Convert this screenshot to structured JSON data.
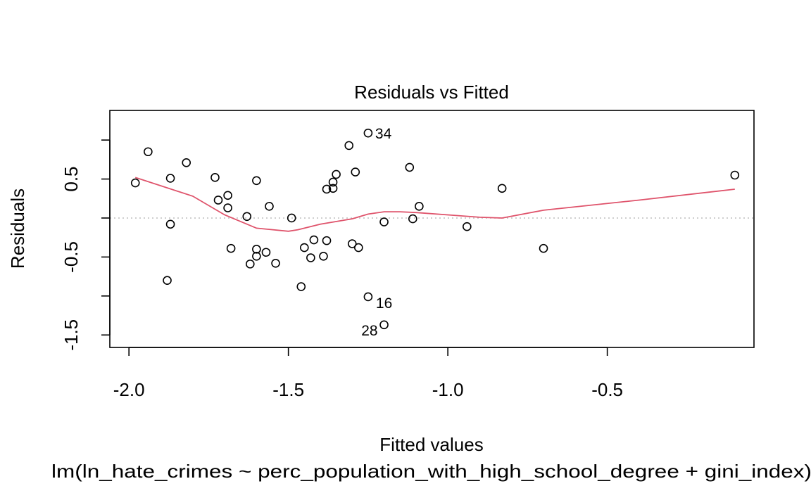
{
  "chart_data": {
    "type": "scatter",
    "title": "Residuals vs Fitted",
    "xlabel": "Fitted values",
    "ylabel": "Residuals",
    "subtitle": "lm(ln_hate_crimes ~ perc_population_with_high_school_degree + gini_index)",
    "xlim": [
      -2.06,
      -0.04
    ],
    "ylim": [
      -1.66,
      1.38
    ],
    "x_ticks": [
      -2.0,
      -1.5,
      -1.0,
      -0.5
    ],
    "x_tick_labels": [
      "-2.0",
      "-1.5",
      "-1.0",
      "-0.5"
    ],
    "y_ticks": [
      -1.5,
      -0.5,
      0.5
    ],
    "y_tick_labels": [
      "-1.5",
      "-0.5",
      "0.5"
    ],
    "y_minor_ticks": [
      -1.0,
      0.0,
      1.0
    ],
    "reference_line": {
      "y": 0,
      "style": "dotted",
      "color": "#bebebe"
    },
    "points": [
      {
        "x": -1.98,
        "y": 0.45
      },
      {
        "x": -1.94,
        "y": 0.85
      },
      {
        "x": -1.87,
        "y": 0.51
      },
      {
        "x": -1.87,
        "y": -0.08
      },
      {
        "x": -1.88,
        "y": -0.8
      },
      {
        "x": -1.82,
        "y": 0.71
      },
      {
        "x": -1.73,
        "y": 0.52
      },
      {
        "x": -1.72,
        "y": 0.23
      },
      {
        "x": -1.69,
        "y": 0.29
      },
      {
        "x": -1.69,
        "y": 0.13
      },
      {
        "x": -1.68,
        "y": -0.39
      },
      {
        "x": -1.63,
        "y": 0.02
      },
      {
        "x": -1.62,
        "y": -0.59
      },
      {
        "x": -1.6,
        "y": 0.48
      },
      {
        "x": -1.6,
        "y": -0.4
      },
      {
        "x": -1.6,
        "y": -0.49
      },
      {
        "x": -1.57,
        "y": -0.44
      },
      {
        "x": -1.56,
        "y": 0.15
      },
      {
        "x": -1.54,
        "y": -0.58
      },
      {
        "x": -1.49,
        "y": 0.0
      },
      {
        "x": -1.46,
        "y": -0.88
      },
      {
        "x": -1.45,
        "y": -0.38
      },
      {
        "x": -1.43,
        "y": -0.51
      },
      {
        "x": -1.42,
        "y": -0.28
      },
      {
        "x": -1.39,
        "y": -0.49
      },
      {
        "x": -1.38,
        "y": -0.29
      },
      {
        "x": -1.38,
        "y": 0.37
      },
      {
        "x": -1.36,
        "y": 0.38
      },
      {
        "x": -1.36,
        "y": 0.46
      },
      {
        "x": -1.35,
        "y": 0.56
      },
      {
        "x": -1.31,
        "y": 0.93
      },
      {
        "x": -1.3,
        "y": -0.33
      },
      {
        "x": -1.29,
        "y": 0.59
      },
      {
        "x": -1.28,
        "y": -0.38
      },
      {
        "x": -1.25,
        "y": -1.01
      },
      {
        "x": -1.25,
        "y": 1.09
      },
      {
        "x": -1.2,
        "y": -1.37
      },
      {
        "x": -1.2,
        "y": -0.05
      },
      {
        "x": -1.12,
        "y": 0.65
      },
      {
        "x": -1.11,
        "y": -0.01
      },
      {
        "x": -1.09,
        "y": 0.15
      },
      {
        "x": -0.94,
        "y": -0.11
      },
      {
        "x": -0.83,
        "y": 0.38
      },
      {
        "x": -0.7,
        "y": -0.39
      },
      {
        "x": -0.1,
        "y": 0.55
      }
    ],
    "point_labels": [
      {
        "text": "34",
        "x": -1.25,
        "y": 1.09,
        "side": "right"
      },
      {
        "text": "16",
        "x": -1.25,
        "y": -1.01,
        "side": "below-right"
      },
      {
        "text": "28",
        "x": -1.2,
        "y": -1.37,
        "side": "below-left"
      }
    ],
    "smooth": {
      "color": "#df536b",
      "x": [
        -1.98,
        -1.8,
        -1.7,
        -1.6,
        -1.5,
        -1.47,
        -1.4,
        -1.3,
        -1.25,
        -1.2,
        -1.15,
        -1.1,
        -1.0,
        -0.9,
        -0.83,
        -0.7,
        -0.4,
        -0.1
      ],
      "y": [
        0.52,
        0.28,
        0.04,
        -0.13,
        -0.17,
        -0.15,
        -0.08,
        -0.01,
        0.05,
        0.08,
        0.08,
        0.07,
        0.04,
        0.01,
        0.0,
        0.1,
        0.23,
        0.37
      ]
    }
  }
}
